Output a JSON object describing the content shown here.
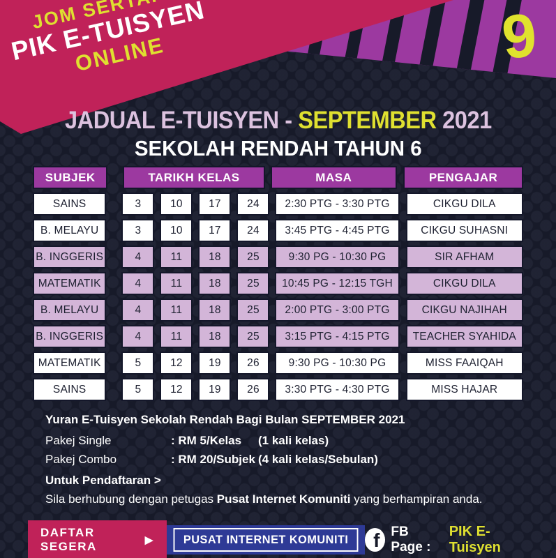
{
  "banner": {
    "line1": "JOM SERTAI",
    "line2": "PIK E-TUISYEN",
    "line3": "ONLINE"
  },
  "badge": {
    "number": "9"
  },
  "title": {
    "prefix": "JADUAL E-TUISYEN - ",
    "highlight": "SEPTEMBER",
    "suffix": " 2021",
    "subtitle": "SEKOLAH RENDAH TAHUN 6"
  },
  "table": {
    "headers": {
      "subjek": "SUBJEK",
      "tarikh_kelas": "TARIKH KELAS",
      "masa": "MASA",
      "pengajar": "PENGAJAR"
    },
    "rows": [
      {
        "subjek": "SAINS",
        "dates": [
          "3",
          "10",
          "17",
          "24"
        ],
        "masa": "2:30 PTG - 3:30 PTG",
        "pengajar": "CIKGU DILA",
        "shade": "white"
      },
      {
        "subjek": "B. MELAYU",
        "dates": [
          "3",
          "10",
          "17",
          "24"
        ],
        "masa": "3:45 PTG - 4:45 PTG",
        "pengajar": "CIKGU SUHASNI",
        "shade": "white"
      },
      {
        "subjek": "B. INGGERIS",
        "dates": [
          "4",
          "11",
          "18",
          "25"
        ],
        "masa": "9:30 PG - 10:30 PG",
        "pengajar": "SIR AFHAM",
        "shade": "lavender"
      },
      {
        "subjek": "MATEMATIK",
        "dates": [
          "4",
          "11",
          "18",
          "25"
        ],
        "masa": "10:45 PG - 12:15 TGH",
        "pengajar": "CIKGU DILA",
        "shade": "lavender"
      },
      {
        "subjek": "B. MELAYU",
        "dates": [
          "4",
          "11",
          "18",
          "25"
        ],
        "masa": "2:00 PTG - 3:00 PTG",
        "pengajar": "CIKGU NAJIHAH",
        "shade": "lavender"
      },
      {
        "subjek": "B. INGGERIS",
        "dates": [
          "4",
          "11",
          "18",
          "25"
        ],
        "masa": "3:15 PTG - 4:15 PTG",
        "pengajar": "TEACHER SYAHIDA",
        "shade": "lavender"
      },
      {
        "subjek": "MATEMATIK",
        "dates": [
          "5",
          "12",
          "19",
          "26"
        ],
        "masa": "9:30 PG - 10:30 PG",
        "pengajar": "MISS FAAIQAH",
        "shade": "white"
      },
      {
        "subjek": "SAINS",
        "dates": [
          "5",
          "12",
          "19",
          "26"
        ],
        "masa": "3:30 PTG - 4:30 PTG",
        "pengajar": "MISS HAJAR",
        "shade": "white"
      }
    ]
  },
  "fees": {
    "heading": "Yuran E-Tuisyen Sekolah Rendah Bagi Bulan SEPTEMBER 2021",
    "items": [
      {
        "label": "Pakej Single",
        "price": ": RM 5/Kelas",
        "note": "(1 kali kelas)"
      },
      {
        "label": "Pakej Combo",
        "price": ": RM 20/Subjek",
        "note": "(4 kali kelas/Sebulan)"
      }
    ]
  },
  "registration": {
    "heading": "Untuk Pendaftaran >",
    "body_prefix": "Sila berhubung dengan petugas ",
    "body_bold": "Pusat Internet Komuniti",
    "body_suffix": " yang berhampiran anda."
  },
  "footer": {
    "register_button": "DAFTAR SEGERA",
    "register_arrow": "▶",
    "pik_button": "PUSAT INTERNET KOMUNITI",
    "fb_icon_letter": "f",
    "fb_label": "FB Page :",
    "fb_page": "PIK E-Tuisyen"
  },
  "colors": {
    "background_navy": "#171a29",
    "crimson": "#c02259",
    "purple": "#9c39a0",
    "lavender_row": "#d3b5d8",
    "yellow": "#dfe030",
    "title_pink": "#dcc2df",
    "blue_button": "#2e3a96"
  }
}
